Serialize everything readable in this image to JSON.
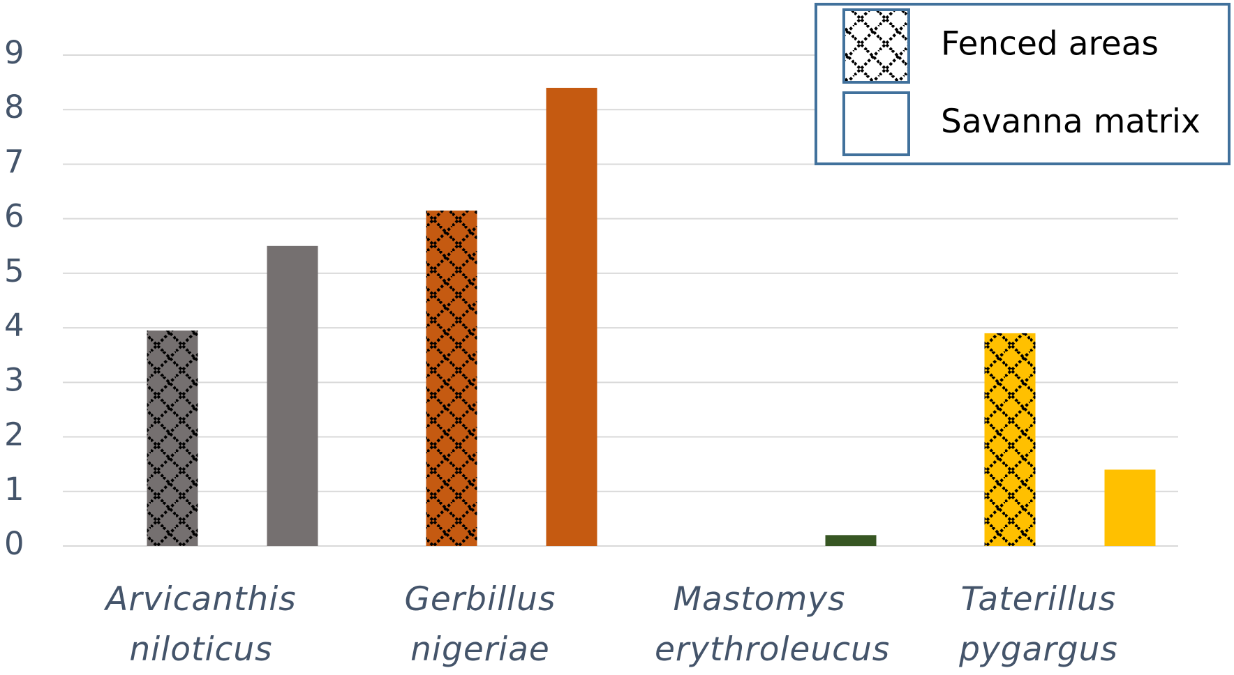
{
  "chart_data": {
    "type": "bar",
    "categories": [
      "Arvicanthis niloticus",
      "Gerbillus nigeriae",
      "Mastomys erythroleucus",
      "Taterillus pygargus"
    ],
    "category_colors": [
      "#757070",
      "#c55a11",
      "#375623",
      "#ffc000"
    ],
    "series": [
      {
        "name": "Fenced areas",
        "pattern": "hatch",
        "values": [
          3.95,
          6.15,
          0,
          3.9
        ]
      },
      {
        "name": "Savanna matrix",
        "pattern": "solid",
        "values": [
          5.5,
          8.4,
          0.2,
          1.4
        ]
      }
    ],
    "ylim": [
      0,
      9
    ],
    "yticks": [
      0,
      1,
      2,
      3,
      4,
      5,
      6,
      7,
      8,
      9
    ],
    "grid": true,
    "legend": "top-right"
  }
}
